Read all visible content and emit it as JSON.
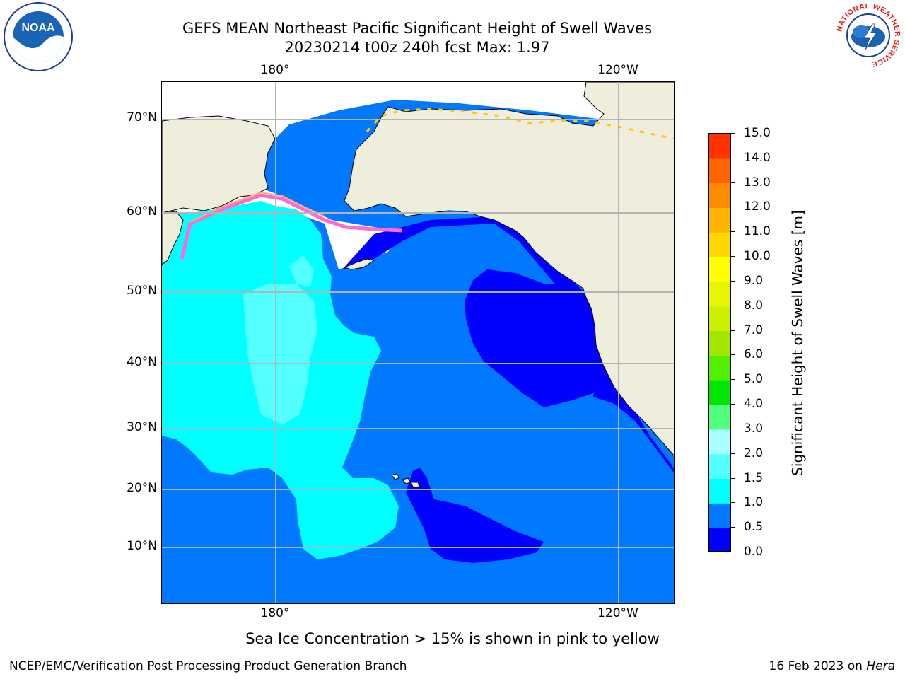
{
  "header": {
    "title_line1": "GEFS MEAN Northeast Pacific Significant Height of Swell Waves",
    "title_line2": "20230214 t00z 240h fcst   Max: 1.97"
  },
  "map": {
    "lon_labels": [
      "180°",
      "120°W"
    ],
    "lat_labels": [
      "70°N",
      "60°N",
      "50°N",
      "40°N",
      "30°N",
      "20°N",
      "10°N"
    ],
    "colors": {
      "land": "#EFEDDC",
      "sea_ice_background": "#FFFFFF",
      "grid": "#B4B4B4",
      "coast": "#000000"
    }
  },
  "colorbar": {
    "title": "Significant Height of Swell Waves [m]",
    "tick_labels": [
      "0.0",
      "0.5",
      "1.0",
      "1.5",
      "2.0",
      "3.0",
      "4.0",
      "5.0",
      "6.0",
      "7.0",
      "8.0",
      "9.0",
      "10.0",
      "11.0",
      "12.0",
      "13.0",
      "14.0",
      "15.0"
    ],
    "bin_colors": [
      "#0000FF",
      "#0079FF",
      "#00FFFF",
      "#54FFFF",
      "#A8FFFF",
      "#50FF7C",
      "#00E600",
      "#50F000",
      "#A2E600",
      "#CCF000",
      "#E6F500",
      "#FFFF00",
      "#FFD700",
      "#FFB400",
      "#FF8C00",
      "#FF6400",
      "#FF3200",
      "#FF0000"
    ]
  },
  "notes": {
    "ice_note": "Sea Ice Concentration > 15% is shown in pink to yellow"
  },
  "footer": {
    "left": "NCEP/EMC/Verification Post Processing Product Generation Branch",
    "date_text": "16 Feb 2023 on ",
    "machine": "Hera"
  },
  "logos": {
    "noaa_text": "NOAA",
    "nws_ring_text": "NATIONAL WEATHER SERVICE"
  }
}
